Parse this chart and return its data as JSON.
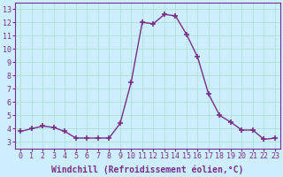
{
  "hours": [
    0,
    1,
    2,
    3,
    4,
    5,
    6,
    7,
    8,
    9,
    10,
    11,
    12,
    13,
    14,
    15,
    16,
    17,
    18,
    19,
    20,
    21,
    22,
    23
  ],
  "values": [
    3.8,
    4.0,
    4.2,
    4.1,
    3.8,
    3.3,
    3.3,
    3.3,
    3.3,
    4.4,
    7.5,
    12.0,
    11.9,
    12.6,
    12.5,
    11.1,
    9.4,
    6.6,
    5.0,
    4.5,
    3.9,
    3.9,
    3.2,
    3.3
  ],
  "line_color": "#7b2d8b",
  "marker": "+",
  "marker_size": 4,
  "marker_lw": 1.2,
  "bg_color": "#cceeff",
  "grid_color": "#aaddcc",
  "xlabel": "Windchill (Refroidissement éolien,°C)",
  "xlim": [
    -0.5,
    23.5
  ],
  "ylim": [
    2.5,
    13.5
  ],
  "yticks": [
    3,
    4,
    5,
    6,
    7,
    8,
    9,
    10,
    11,
    12,
    13
  ],
  "xticks": [
    0,
    1,
    2,
    3,
    4,
    5,
    6,
    7,
    8,
    9,
    10,
    11,
    12,
    13,
    14,
    15,
    16,
    17,
    18,
    19,
    20,
    21,
    22,
    23
  ],
  "tick_label_fontsize": 6,
  "xlabel_fontsize": 7,
  "line_width": 1.0
}
